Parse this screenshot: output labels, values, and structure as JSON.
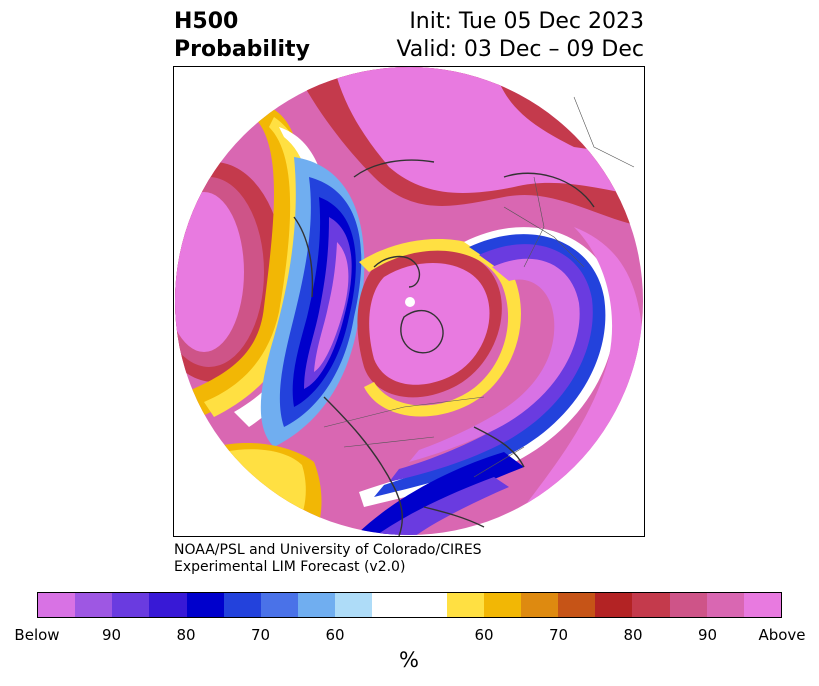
{
  "title": {
    "left_line1": "H500",
    "left_line2": "Probability",
    "right_line1": "Init: Tue 05 Dec 2023",
    "right_line2": "Valid: 03 Dec – 09 Dec"
  },
  "credit": {
    "line1": "NOAA/PSL and University of Colorado/CIRES",
    "line2": "Experimental LIM Forecast (v2.0)"
  },
  "colorbar": {
    "colors": [
      "#d872e4",
      "#9e57e3",
      "#6a3be0",
      "#3819d6",
      "#0000cc",
      "#2342dc",
      "#4a72e8",
      "#70aef0",
      "#aedcf8",
      "#ffffff",
      "#ffe042",
      "#f2b705",
      "#de8a10",
      "#c65417",
      "#b32324",
      "#c43a4c",
      "#ce5488",
      "#d967b2",
      "#e87ae0"
    ],
    "wide_index": 9,
    "ticks": [
      "Below",
      "90",
      "80",
      "70",
      "60",
      "60",
      "70",
      "80",
      "90",
      "Above"
    ],
    "unit": "%"
  }
}
